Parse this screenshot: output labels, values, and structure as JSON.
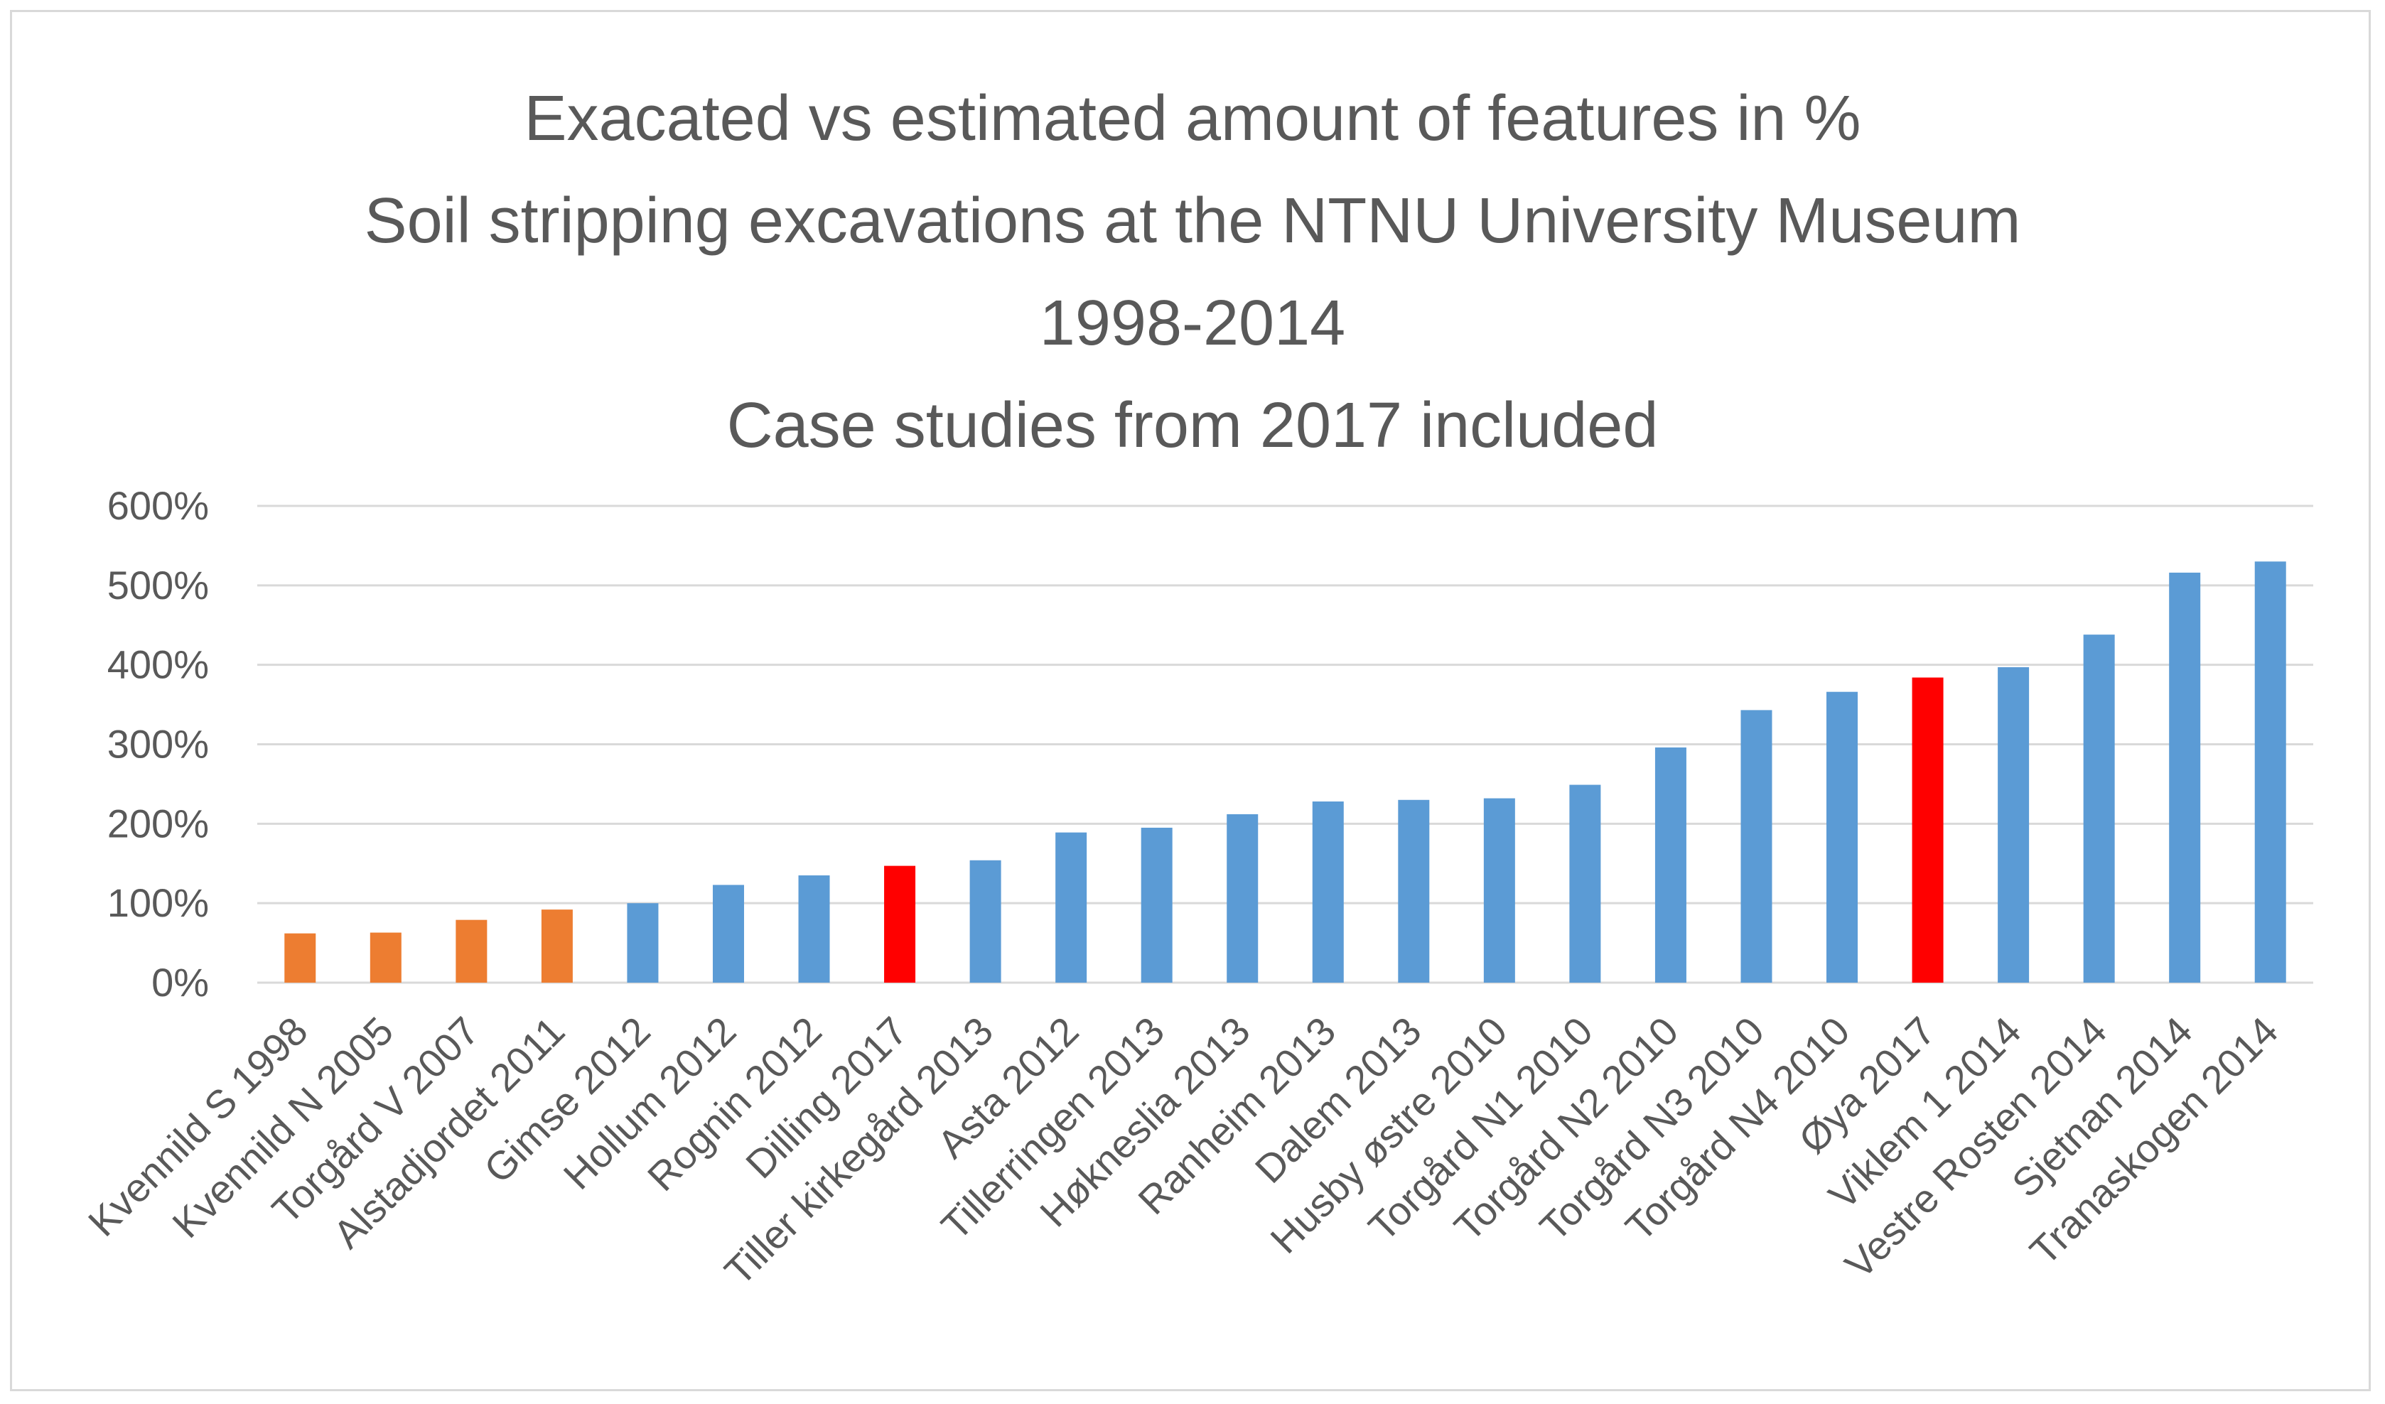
{
  "chart_data": {
    "type": "bar",
    "title": [
      "Exacated vs estimated amount of features in %",
      "Soil stripping excavations at the NTNU University Museum",
      "1998-2014",
      "Case studies from 2017 included"
    ],
    "xlabel": "",
    "ylabel": "",
    "ylim": [
      0,
      600
    ],
    "yticks": [
      0,
      100,
      200,
      300,
      400,
      500,
      600
    ],
    "ytick_labels": [
      "0%",
      "100%",
      "200%",
      "300%",
      "400%",
      "500%",
      "600%"
    ],
    "grid": true,
    "legend": "none",
    "categories": [
      "Kvennild S 1998",
      "Kvennild N 2005",
      "Torgård V 2007",
      "Alstadjordet 2011",
      "Gimse 2012",
      "Hollum 2012",
      "Rognin 2012",
      "Dilling 2017",
      "Tiller kirkegård 2013",
      "Asta 2012",
      "Tillerringen 2013",
      "Høkneslia 2013",
      "Ranheim 2013",
      "Dalem 2013",
      "Husby østre 2010",
      "Torgård N1 2010",
      "Torgård N2 2010",
      "Torgård N3 2010",
      "Torgård N4 2010",
      "Øya 2017",
      "Viklem 1 2014",
      "Vestre Rosten 2014",
      "Sjetnan 2014",
      "Tranaskogen 2014"
    ],
    "values": [
      62,
      63,
      79,
      92,
      100,
      123,
      135,
      147,
      154,
      189,
      195,
      212,
      228,
      230,
      232,
      249,
      296,
      343,
      366,
      384,
      397,
      438,
      516,
      530
    ],
    "bar_colors": [
      "#ed7d31",
      "#ed7d31",
      "#ed7d31",
      "#ed7d31",
      "#5b9bd5",
      "#5b9bd5",
      "#5b9bd5",
      "#ff0000",
      "#5b9bd5",
      "#5b9bd5",
      "#5b9bd5",
      "#5b9bd5",
      "#5b9bd5",
      "#5b9bd5",
      "#5b9bd5",
      "#5b9bd5",
      "#5b9bd5",
      "#5b9bd5",
      "#5b9bd5",
      "#ff0000",
      "#5b9bd5",
      "#5b9bd5",
      "#5b9bd5",
      "#5b9bd5"
    ]
  }
}
